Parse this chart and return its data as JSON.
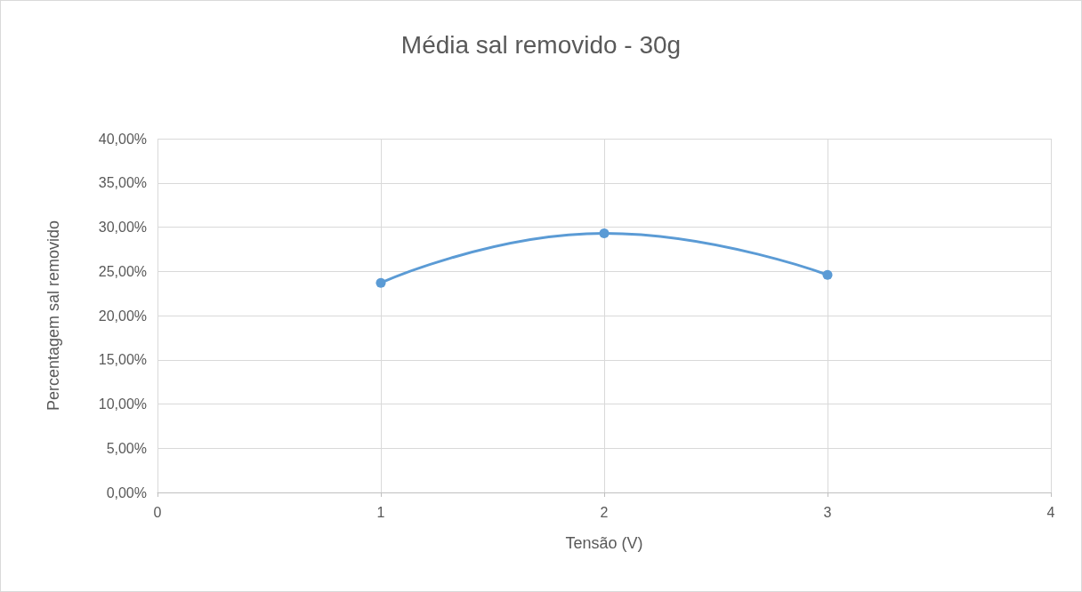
{
  "chart_data": {
    "type": "line",
    "title": "Média sal removido - 30g",
    "xlabel": "Tensão (V)",
    "ylabel": "Percentagem sal removido",
    "x": [
      1,
      2,
      3
    ],
    "series": [
      {
        "color": "#5b9bd5",
        "values": [
          23.7,
          29.3,
          24.6
        ]
      }
    ],
    "xlim": [
      0,
      4
    ],
    "xticks": [
      0,
      1,
      2,
      3,
      4
    ],
    "ylim": [
      0,
      40
    ],
    "yticks": [
      {
        "value": 0,
        "label": "0,00%"
      },
      {
        "value": 5,
        "label": "5,00%"
      },
      {
        "value": 10,
        "label": "10,00%"
      },
      {
        "value": 15,
        "label": "15,00%"
      },
      {
        "value": 20,
        "label": "20,00%"
      },
      {
        "value": 25,
        "label": "25,00%"
      },
      {
        "value": 30,
        "label": "30,00%"
      },
      {
        "value": 35,
        "label": "35,00%"
      },
      {
        "value": 40,
        "label": "40,00%"
      }
    ],
    "grid": true,
    "marker": "circle",
    "line_style": "solid"
  }
}
